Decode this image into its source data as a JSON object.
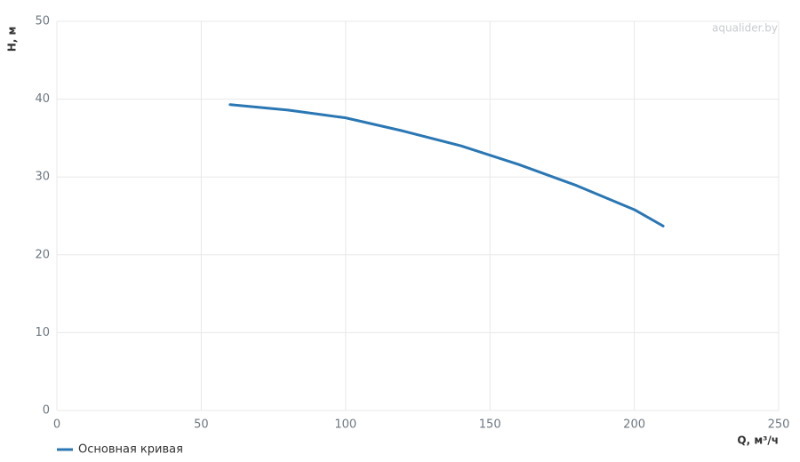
{
  "chart_data": {
    "type": "line",
    "x": [
      60,
      80,
      100,
      120,
      140,
      160,
      180,
      200,
      210
    ],
    "series": [
      {
        "name": "Основная кривая",
        "color": "#2a77b4",
        "values": [
          39.3,
          38.6,
          37.6,
          35.9,
          34.0,
          31.6,
          28.9,
          25.8,
          23.7
        ]
      }
    ],
    "xlabel": "Q, м³/ч",
    "ylabel": "H, м",
    "watermark": "aqualider.by",
    "xlim": [
      0,
      250
    ],
    "xticks": [
      0,
      50,
      100,
      150,
      200,
      250
    ],
    "ylim": [
      0,
      50
    ],
    "yticks": [
      0,
      10,
      20,
      30,
      40,
      50
    ],
    "grid": true,
    "legend": "bottom-left"
  }
}
